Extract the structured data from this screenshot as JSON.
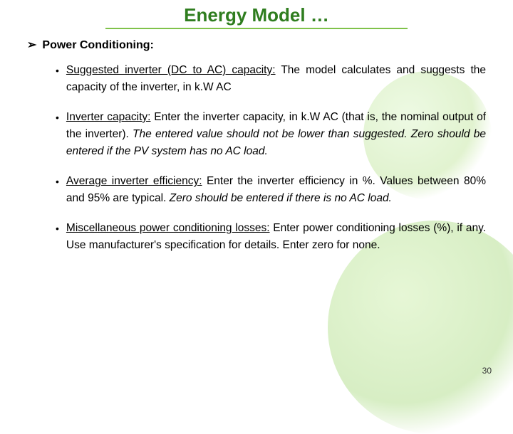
{
  "title": "Energy Model …",
  "section_heading": "Power Conditioning:",
  "bullets": [
    {
      "lead": "Suggested inverter (DC to AC) capacity:",
      "rest": " The model calculates and suggests the capacity of the inverter, in k.W AC",
      "italic": ""
    },
    {
      "lead": "Inverter capacity:",
      "rest": " Enter the inverter capacity, in k.W AC (that is, the nominal output of the inverter). ",
      "italic": "The entered value should not be lower than suggested. Zero should be entered if the PV system has no AC load."
    },
    {
      "lead": "Average inverter efficiency:",
      "rest": " Enter the inverter efficiency in %. Values between 80% and 95% are typical. ",
      "italic": "Zero should be entered if there is no AC load."
    },
    {
      "lead": "Miscellaneous power conditioning losses:",
      "rest": " Enter power conditioning losses (%), if any. Use manufacturer's specification for details. Enter zero for none.",
      "italic": ""
    }
  ],
  "page_number": "30",
  "colors": {
    "title_color": "#2f7d1f",
    "underline_color": "#7fc24a",
    "text_color": "#000000",
    "background": "#ffffff"
  }
}
